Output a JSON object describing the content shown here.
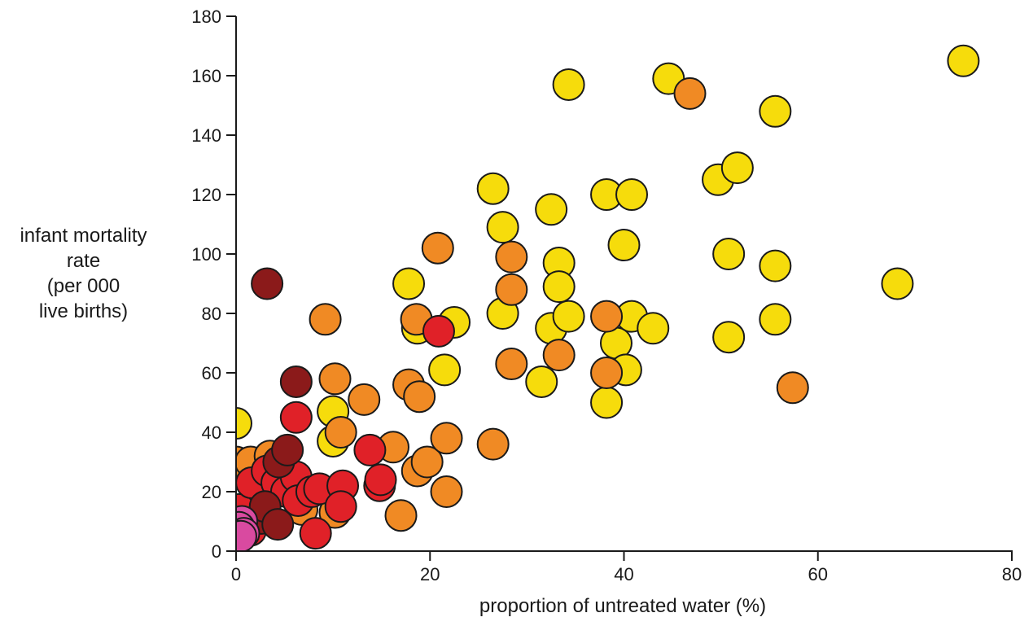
{
  "chart_data": {
    "type": "scatter",
    "title": "",
    "xlabel": "proportion of untreated water (%)",
    "ylabel_lines": [
      "infant mortality",
      "rate",
      "(per 000",
      "live births)"
    ],
    "xlim": [
      0,
      80
    ],
    "ylim": [
      0,
      180
    ],
    "xticks": [
      0,
      20,
      40,
      60,
      80
    ],
    "yticks": [
      0,
      20,
      40,
      60,
      80,
      100,
      120,
      140,
      160,
      180
    ],
    "grid": false,
    "colors": {
      "yellow": "#f6dc0c",
      "orange": "#f08a24",
      "red": "#e02128",
      "darkred": "#8b1a1a",
      "magenta": "#d94aa0",
      "outline": "#1a1a1a"
    },
    "points": [
      {
        "x": 0,
        "y": 43,
        "c": "yellow"
      },
      {
        "x": 10,
        "y": 47,
        "c": "yellow"
      },
      {
        "x": 10,
        "y": 37,
        "c": "yellow"
      },
      {
        "x": 17.8,
        "y": 90,
        "c": "yellow"
      },
      {
        "x": 18.7,
        "y": 75,
        "c": "yellow"
      },
      {
        "x": 21.5,
        "y": 61,
        "c": "yellow"
      },
      {
        "x": 22.5,
        "y": 77,
        "c": "yellow"
      },
      {
        "x": 26.5,
        "y": 122,
        "c": "yellow"
      },
      {
        "x": 27.5,
        "y": 109,
        "c": "yellow"
      },
      {
        "x": 27.5,
        "y": 80,
        "c": "yellow"
      },
      {
        "x": 31.5,
        "y": 57,
        "c": "yellow"
      },
      {
        "x": 32.5,
        "y": 115,
        "c": "yellow"
      },
      {
        "x": 32.5,
        "y": 75,
        "c": "yellow"
      },
      {
        "x": 33.3,
        "y": 97,
        "c": "yellow"
      },
      {
        "x": 33.3,
        "y": 89,
        "c": "yellow"
      },
      {
        "x": 34.3,
        "y": 157,
        "c": "yellow"
      },
      {
        "x": 34.3,
        "y": 79,
        "c": "yellow"
      },
      {
        "x": 38.2,
        "y": 120,
        "c": "yellow"
      },
      {
        "x": 38.2,
        "y": 50,
        "c": "yellow"
      },
      {
        "x": 39.2,
        "y": 70,
        "c": "yellow"
      },
      {
        "x": 40,
        "y": 103,
        "c": "yellow"
      },
      {
        "x": 40.2,
        "y": 61,
        "c": "yellow"
      },
      {
        "x": 40.8,
        "y": 120,
        "c": "yellow"
      },
      {
        "x": 40.8,
        "y": 79,
        "c": "yellow"
      },
      {
        "x": 43,
        "y": 75,
        "c": "yellow"
      },
      {
        "x": 44.6,
        "y": 159,
        "c": "yellow"
      },
      {
        "x": 49.7,
        "y": 125,
        "c": "yellow"
      },
      {
        "x": 50.8,
        "y": 100,
        "c": "yellow"
      },
      {
        "x": 50.8,
        "y": 72,
        "c": "yellow"
      },
      {
        "x": 51.7,
        "y": 129,
        "c": "yellow"
      },
      {
        "x": 55.6,
        "y": 148,
        "c": "yellow"
      },
      {
        "x": 55.6,
        "y": 96,
        "c": "yellow"
      },
      {
        "x": 55.6,
        "y": 78,
        "c": "yellow"
      },
      {
        "x": 68.2,
        "y": 90,
        "c": "yellow"
      },
      {
        "x": 75,
        "y": 165,
        "c": "yellow"
      },
      {
        "x": 0,
        "y": 30,
        "c": "orange"
      },
      {
        "x": 1.5,
        "y": 30,
        "c": "orange"
      },
      {
        "x": 3.5,
        "y": 32,
        "c": "orange"
      },
      {
        "x": 6.8,
        "y": 14,
        "c": "orange"
      },
      {
        "x": 9.2,
        "y": 78,
        "c": "orange"
      },
      {
        "x": 10.2,
        "y": 58,
        "c": "orange"
      },
      {
        "x": 10.2,
        "y": 13,
        "c": "orange"
      },
      {
        "x": 10.8,
        "y": 40,
        "c": "orange"
      },
      {
        "x": 13.2,
        "y": 51,
        "c": "orange"
      },
      {
        "x": 16.2,
        "y": 35,
        "c": "orange"
      },
      {
        "x": 17,
        "y": 12,
        "c": "orange"
      },
      {
        "x": 17.8,
        "y": 56,
        "c": "orange"
      },
      {
        "x": 18.6,
        "y": 78,
        "c": "orange"
      },
      {
        "x": 18.7,
        "y": 27,
        "c": "orange"
      },
      {
        "x": 18.9,
        "y": 52,
        "c": "orange"
      },
      {
        "x": 19.7,
        "y": 30,
        "c": "orange"
      },
      {
        "x": 20.8,
        "y": 102,
        "c": "orange"
      },
      {
        "x": 21.7,
        "y": 38,
        "c": "orange"
      },
      {
        "x": 21.7,
        "y": 20,
        "c": "orange"
      },
      {
        "x": 26.5,
        "y": 36,
        "c": "orange"
      },
      {
        "x": 28.4,
        "y": 99,
        "c": "orange"
      },
      {
        "x": 28.4,
        "y": 88,
        "c": "orange"
      },
      {
        "x": 28.4,
        "y": 63,
        "c": "orange"
      },
      {
        "x": 33.3,
        "y": 66,
        "c": "orange"
      },
      {
        "x": 38.2,
        "y": 79,
        "c": "orange"
      },
      {
        "x": 38.2,
        "y": 60,
        "c": "orange"
      },
      {
        "x": 46.8,
        "y": 154,
        "c": "orange"
      },
      {
        "x": 57.4,
        "y": 55,
        "c": "orange"
      },
      {
        "x": 0.3,
        "y": 14,
        "c": "red"
      },
      {
        "x": 1.5,
        "y": 7,
        "c": "red"
      },
      {
        "x": 1.6,
        "y": 23,
        "c": "red"
      },
      {
        "x": 3.2,
        "y": 27,
        "c": "red"
      },
      {
        "x": 4.2,
        "y": 23,
        "c": "red"
      },
      {
        "x": 5.2,
        "y": 20,
        "c": "red"
      },
      {
        "x": 6.2,
        "y": 45,
        "c": "red"
      },
      {
        "x": 6.2,
        "y": 25,
        "c": "red"
      },
      {
        "x": 6.4,
        "y": 17,
        "c": "red"
      },
      {
        "x": 7.8,
        "y": 20,
        "c": "red"
      },
      {
        "x": 8.6,
        "y": 21,
        "c": "red"
      },
      {
        "x": 8.2,
        "y": 6,
        "c": "red"
      },
      {
        "x": 11,
        "y": 22,
        "c": "red"
      },
      {
        "x": 10.8,
        "y": 15,
        "c": "red"
      },
      {
        "x": 13.8,
        "y": 34,
        "c": "red"
      },
      {
        "x": 14.8,
        "y": 22,
        "c": "red"
      },
      {
        "x": 14.9,
        "y": 24,
        "c": "red"
      },
      {
        "x": 20.9,
        "y": 74,
        "c": "red"
      },
      {
        "x": 3.2,
        "y": 90,
        "c": "darkred"
      },
      {
        "x": 2.6,
        "y": 11,
        "c": "darkred"
      },
      {
        "x": 3,
        "y": 15,
        "c": "darkred"
      },
      {
        "x": 4.4,
        "y": 30,
        "c": "darkred"
      },
      {
        "x": 4.3,
        "y": 9,
        "c": "darkred"
      },
      {
        "x": 5.3,
        "y": 34,
        "c": "darkred"
      },
      {
        "x": 6.2,
        "y": 57,
        "c": "darkred"
      },
      {
        "x": 0.6,
        "y": 10,
        "c": "magenta"
      },
      {
        "x": 0.3,
        "y": 8,
        "c": "magenta"
      },
      {
        "x": 0.8,
        "y": 6,
        "c": "magenta"
      },
      {
        "x": 0.2,
        "y": 5,
        "c": "magenta"
      },
      {
        "x": 0.5,
        "y": 5,
        "c": "magenta"
      }
    ]
  }
}
